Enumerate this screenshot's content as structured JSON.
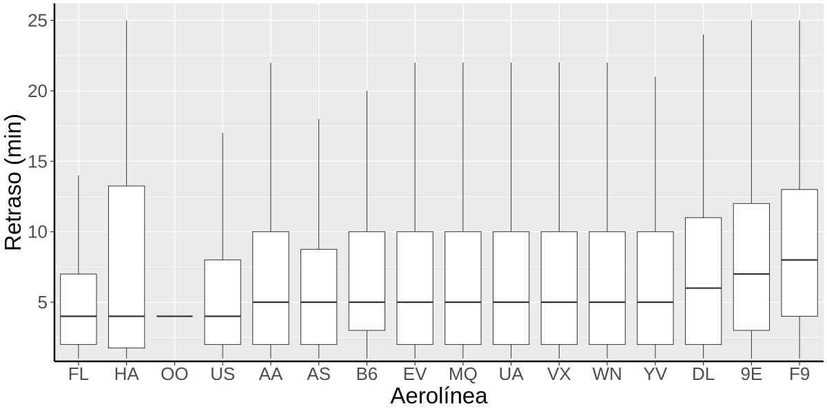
{
  "chart_data": {
    "type": "boxplot",
    "title": "",
    "xlabel": "Aerolínea",
    "ylabel": "Retraso (min)",
    "ylim": [
      0.8,
      26.2
    ],
    "yticks": [
      5,
      10,
      15,
      20,
      25
    ],
    "grid": true,
    "legend": "none",
    "categories": [
      "FL",
      "HA",
      "OO",
      "US",
      "AA",
      "AS",
      "B6",
      "EV",
      "MQ",
      "UA",
      "VX",
      "WN",
      "YV",
      "DL",
      "9E",
      "F9"
    ],
    "boxes": [
      {
        "category": "FL",
        "min": 1,
        "q1": 2,
        "median": 4,
        "q3": 7,
        "max": 14
      },
      {
        "category": "HA",
        "min": 1,
        "q1": 1.75,
        "median": 4,
        "q3": 13.25,
        "max": 25
      },
      {
        "category": "OO",
        "min": 4,
        "q1": 4,
        "median": 4,
        "q3": 4,
        "max": 4
      },
      {
        "category": "US",
        "min": 1,
        "q1": 2,
        "median": 4,
        "q3": 8,
        "max": 17
      },
      {
        "category": "AA",
        "min": 1,
        "q1": 2,
        "median": 5,
        "q3": 10,
        "max": 22
      },
      {
        "category": "AS",
        "min": 1,
        "q1": 2,
        "median": 5,
        "q3": 8.75,
        "max": 18
      },
      {
        "category": "B6",
        "min": 1,
        "q1": 3,
        "median": 5,
        "q3": 10,
        "max": 20
      },
      {
        "category": "EV",
        "min": 1,
        "q1": 2,
        "median": 5,
        "q3": 10,
        "max": 22
      },
      {
        "category": "MQ",
        "min": 1,
        "q1": 2,
        "median": 5,
        "q3": 10,
        "max": 22
      },
      {
        "category": "UA",
        "min": 1,
        "q1": 2,
        "median": 5,
        "q3": 10,
        "max": 22
      },
      {
        "category": "VX",
        "min": 1,
        "q1": 2,
        "median": 5,
        "q3": 10,
        "max": 22
      },
      {
        "category": "WN",
        "min": 1,
        "q1": 2,
        "median": 5,
        "q3": 10,
        "max": 22
      },
      {
        "category": "YV",
        "min": 1,
        "q1": 2,
        "median": 5,
        "q3": 10,
        "max": 21
      },
      {
        "category": "DL",
        "min": 1,
        "q1": 2,
        "median": 6,
        "q3": 11,
        "max": 24
      },
      {
        "category": "9E",
        "min": 1,
        "q1": 3,
        "median": 7,
        "q3": 12,
        "max": 25
      },
      {
        "category": "F9",
        "min": 1,
        "q1": 4,
        "median": 8,
        "q3": 13,
        "max": 25
      }
    ],
    "colors": {
      "panel_background": "#ebebeb",
      "grid_major": "#ffffff",
      "grid_minor": "#f5f5f5",
      "box_fill": "#ffffff",
      "box_stroke": "#333333",
      "axis_line": "#000000"
    }
  }
}
